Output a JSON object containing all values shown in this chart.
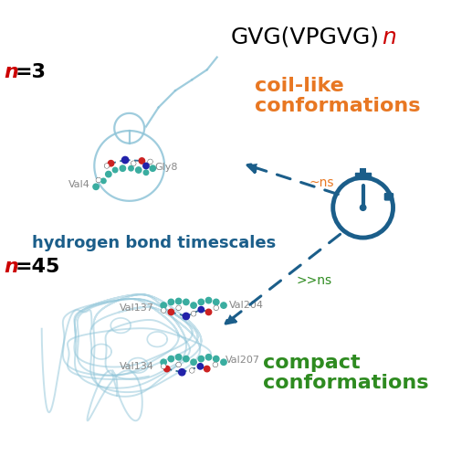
{
  "title_main": "GVG(VPGVG)",
  "title_n": "n",
  "n3_label_n": "n",
  "n3_label_eq": "=3",
  "n45_label_n": "n",
  "n45_label_eq": "=45",
  "coil_text1": "coil-like",
  "coil_text2": "conformations",
  "compact_text1": "compact",
  "compact_text2": "conformations",
  "hbond_text": "hydrogen bond timescales",
  "ns_label": "~ns",
  "ns2_label": ">>ns",
  "val4": "Val4",
  "gly8": "Gly8",
  "val137": "Val137",
  "val204": "Val204",
  "val134": "Val134",
  "val207": "Val207",
  "color_orange": "#E87722",
  "color_dark_blue": "#1B5E8A",
  "color_green": "#2E8B20",
  "color_red": "#CC0000",
  "color_teal": "#3AADA0",
  "color_light_blue": "#8EC4D8",
  "color_navy": "#1B5E8A",
  "color_white": "#FFFFFF",
  "bg_color": "#FFFFFF"
}
